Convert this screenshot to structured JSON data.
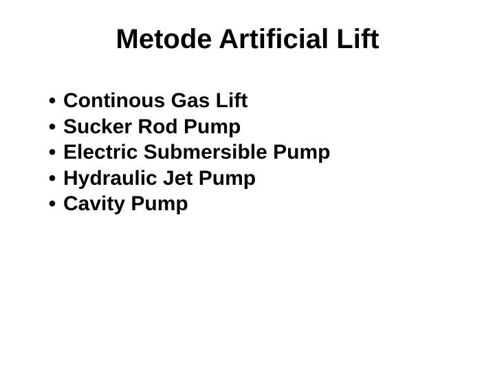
{
  "slide": {
    "title": "Metode Artificial Lift",
    "bullets": [
      "Continous Gas Lift",
      "Sucker Rod Pump",
      "Electric Submersible Pump",
      "Hydraulic Jet Pump",
      "Cavity Pump"
    ],
    "background_color": "#ffffff",
    "text_color": "#000000",
    "title_fontsize": 40,
    "bullet_fontsize": 30,
    "font_family": "Arial"
  }
}
